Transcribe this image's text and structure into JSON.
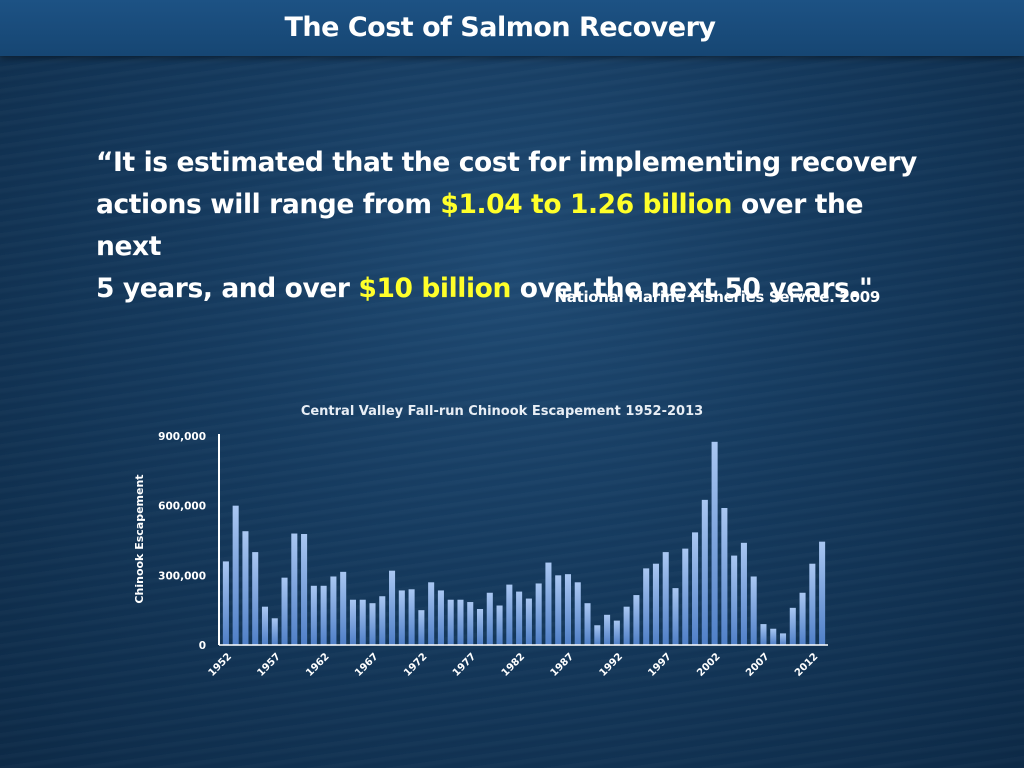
{
  "slide": {
    "title": "The Cost of Salmon Recovery",
    "quote": {
      "line1": "“It is estimated that the cost for implementing recovery",
      "line2_pre": "actions will range from ",
      "line2_highlight": "$1.04 to 1.26 billion",
      "line2_post": " over the next",
      "line3_pre": "5 years, and over ",
      "line3_highlight": "$10 billion",
      "line3_post": " over the next 50 years.\""
    },
    "citation": "National Marine Fisheries Service. 2009",
    "highlight_color": "#ffff2a"
  },
  "chart_data": {
    "type": "bar",
    "title": "Central Valley Fall-run Chinook Escapement 1952-2013",
    "xlabel": "",
    "ylabel": "Chinook Escapement",
    "ylim": [
      0,
      900000
    ],
    "yticks": [
      0,
      300000,
      600000,
      900000
    ],
    "ytick_labels": [
      "0",
      "300,000",
      "600,000",
      "900,000"
    ],
    "xtick_labels": [
      "1952",
      "1957",
      "1962",
      "1967",
      "1972",
      "1977",
      "1982",
      "1987",
      "1992",
      "1997",
      "2002",
      "2007",
      "2012"
    ],
    "years": [
      1952,
      1953,
      1954,
      1955,
      1956,
      1957,
      1958,
      1959,
      1960,
      1961,
      1962,
      1963,
      1964,
      1965,
      1966,
      1967,
      1968,
      1969,
      1970,
      1971,
      1972,
      1973,
      1974,
      1975,
      1976,
      1977,
      1978,
      1979,
      1980,
      1981,
      1982,
      1983,
      1984,
      1985,
      1986,
      1987,
      1988,
      1989,
      1990,
      1991,
      1992,
      1993,
      1994,
      1995,
      1996,
      1997,
      1998,
      1999,
      2000,
      2001,
      2002,
      2003,
      2004,
      2005,
      2006,
      2007,
      2008,
      2009,
      2010,
      2011,
      2012,
      2013
    ],
    "values": [
      360000,
      600000,
      490000,
      400000,
      165000,
      115000,
      290000,
      480000,
      478000,
      255000,
      255000,
      295000,
      315000,
      195000,
      195000,
      180000,
      210000,
      320000,
      235000,
      240000,
      150000,
      270000,
      235000,
      195000,
      195000,
      185000,
      155000,
      225000,
      170000,
      260000,
      230000,
      200000,
      265000,
      355000,
      300000,
      305000,
      270000,
      180000,
      85000,
      130000,
      105000,
      165000,
      215000,
      330000,
      350000,
      400000,
      245000,
      415000,
      485000,
      625000,
      875000,
      590000,
      385000,
      440000,
      295000,
      90000,
      70000,
      50000,
      160000,
      225000,
      350000,
      445000
    ],
    "bar_color_top": "#a9c7f2",
    "bar_color_bottom": "#4f7fc7",
    "grid": false,
    "legend": "none"
  }
}
